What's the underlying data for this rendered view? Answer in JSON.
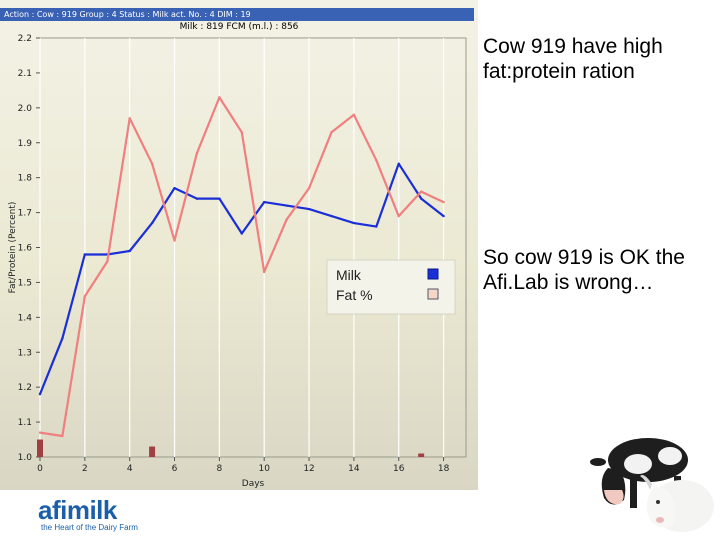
{
  "header": {
    "status_text": "Action : Cow : 919 Group : 4 Status : Milk act. No. : 4 DIM : 19",
    "subtitle": "Milk : 819    FCM (m.l.) : 856"
  },
  "notes": {
    "top": "Cow 919 have high fat:protein ration",
    "bottom": "So cow 919 is OK the Afi.Lab is wrong…"
  },
  "logo": {
    "word": "afimilk",
    "tagline": "the Heart of the Dairy Farm"
  },
  "chart_data": {
    "type": "line",
    "xlabel": "Days",
    "ylabel": "Fat/Protein  (Percent)",
    "xlim": [
      0,
      19
    ],
    "ylim": [
      1.0,
      2.2
    ],
    "x_ticks": [
      0,
      2,
      4,
      6,
      8,
      10,
      12,
      14,
      16,
      18
    ],
    "y_ticks": [
      1.0,
      1.1,
      1.2,
      1.3,
      1.4,
      1.5,
      1.6,
      1.7,
      1.8,
      1.9,
      2.0,
      2.1,
      2.2
    ],
    "grid": "vertical",
    "legend_position": "center-right",
    "series": [
      {
        "name": "Milk",
        "color": "#1a2fd6",
        "x": [
          0,
          1,
          2,
          3,
          4,
          5,
          6,
          7,
          8,
          9,
          10,
          11,
          12,
          13,
          14,
          15,
          16,
          17,
          18
        ],
        "values": [
          1.18,
          1.34,
          1.58,
          1.58,
          1.59,
          1.67,
          1.77,
          1.74,
          1.74,
          1.64,
          1.73,
          1.72,
          1.71,
          1.69,
          1.67,
          1.66,
          1.84,
          1.74,
          1.69
        ]
      },
      {
        "name": "Fat %",
        "color": "#f07f7f",
        "x": [
          0,
          1,
          2,
          3,
          4,
          5,
          6,
          7,
          8,
          9,
          10,
          11,
          12,
          13,
          14,
          15,
          16,
          17,
          18
        ],
        "values": [
          1.07,
          1.06,
          1.46,
          1.56,
          1.97,
          1.84,
          1.62,
          1.87,
          2.03,
          1.93,
          1.53,
          1.68,
          1.77,
          1.93,
          1.98,
          1.85,
          1.69,
          1.76,
          1.73
        ]
      }
    ],
    "bars": {
      "color": "#a04040",
      "x": [
        0,
        5,
        17
      ],
      "values": [
        1.05,
        1.03,
        1.01
      ]
    }
  }
}
